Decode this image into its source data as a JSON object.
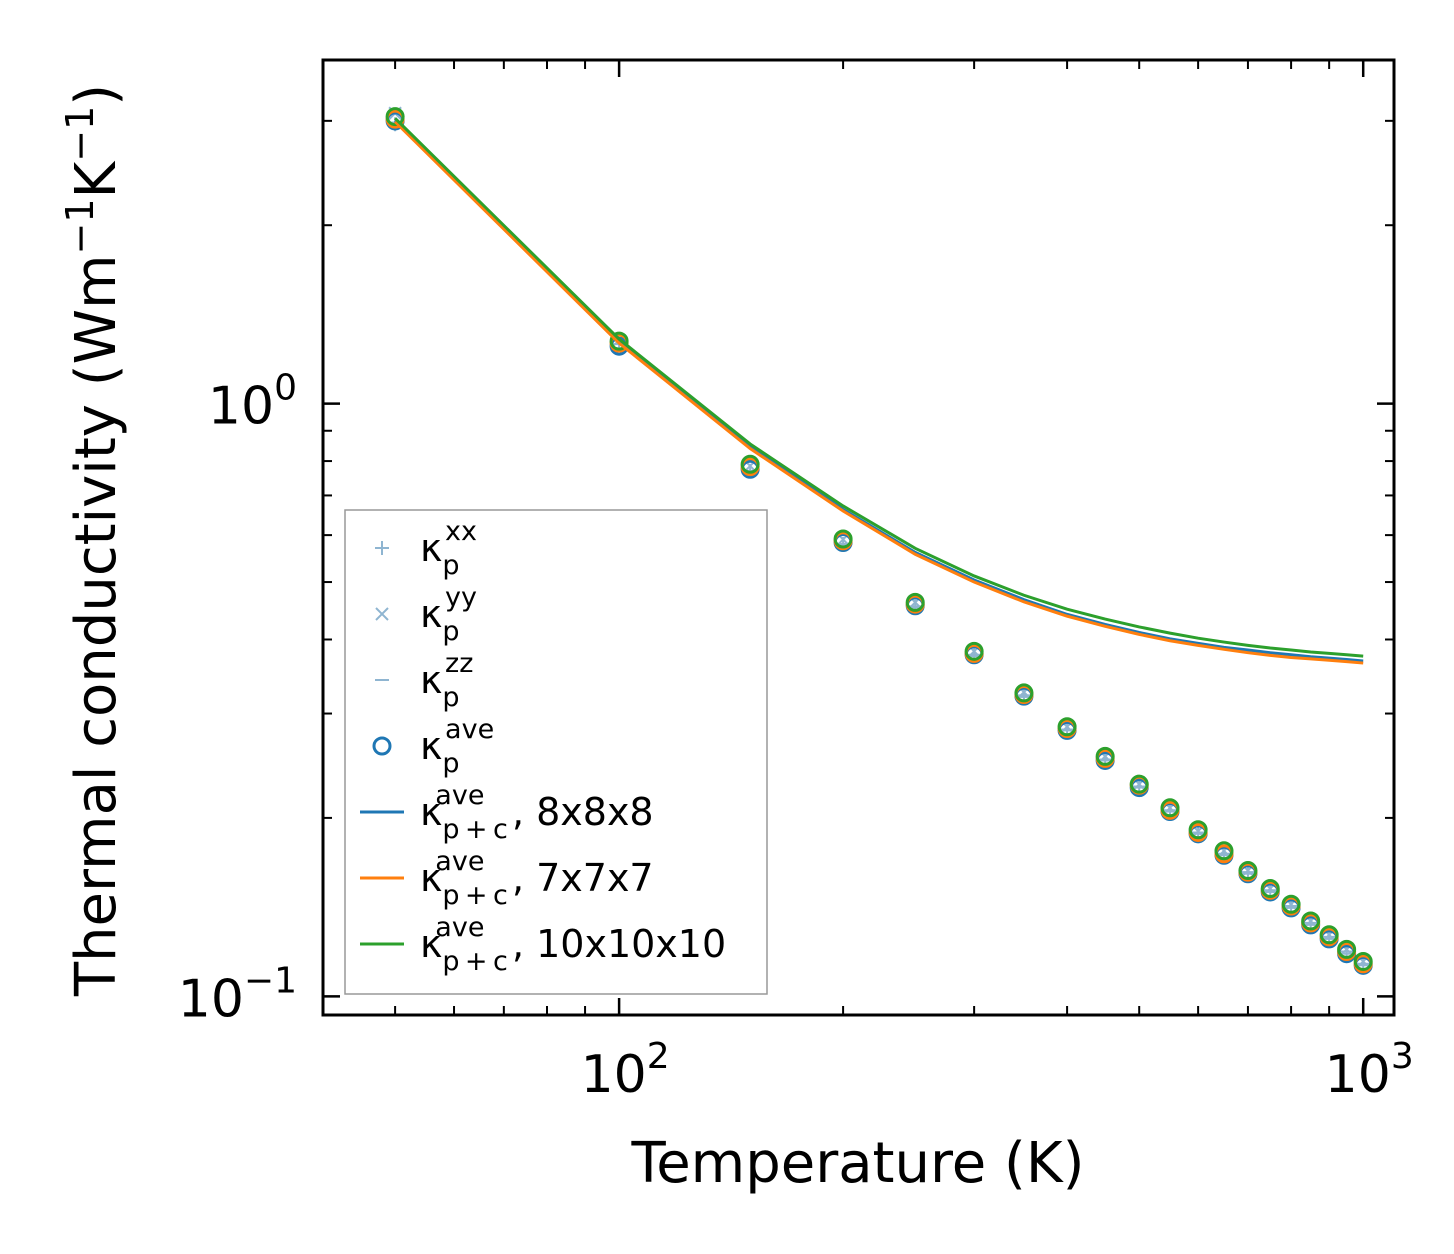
{
  "chart_data": {
    "type": "scatter",
    "xscale": "log",
    "yscale": "log",
    "xlabel": "Temperature (K)",
    "ylabel": "Thermal conductivity (Wm",
    "ylabel_unit_tail": "K",
    "ylabel_close": ")",
    "ylabel_exp": "−1",
    "xlim": [
      40,
      1100
    ],
    "ylim": [
      0.093,
      3.8
    ],
    "x_ticks": [
      {
        "value": 100,
        "base": "10",
        "exp": "2"
      },
      {
        "value": 1000,
        "base": "10",
        "exp": "3"
      }
    ],
    "y_ticks": [
      {
        "value": 1,
        "base": "10",
        "exp": "0"
      },
      {
        "value": 0.1,
        "base": "10",
        "exp": "−1"
      }
    ],
    "temperatures": [
      50,
      100,
      150,
      200,
      250,
      300,
      350,
      400,
      450,
      500,
      550,
      600,
      650,
      700,
      750,
      800,
      850,
      900,
      950,
      1000
    ],
    "series": [
      {
        "name": "kappa_p_xx",
        "label": "κ",
        "sub": "p",
        "sup": "xx",
        "marker": "plus",
        "color": "#8fb5d1",
        "values": [
          2.96,
          1.26,
          0.77,
          0.58,
          0.455,
          0.377,
          0.322,
          0.282,
          0.251,
          0.226,
          0.206,
          0.189,
          0.174,
          0.162,
          0.151,
          0.142,
          0.133,
          0.126,
          0.119,
          0.1135
        ]
      },
      {
        "name": "kappa_p_yy",
        "label": "κ",
        "sub": "p",
        "sup": "yy",
        "marker": "x",
        "color": "#8fb5d1",
        "values": [
          3.09,
          1.28,
          0.785,
          0.59,
          0.462,
          0.382,
          0.326,
          0.285,
          0.254,
          0.228,
          0.208,
          0.19,
          0.176,
          0.163,
          0.152,
          0.143,
          0.134,
          0.127,
          0.12,
          0.1145
        ]
      },
      {
        "name": "kappa_p_zz",
        "label": "κ",
        "sub": "p",
        "sup": "zz",
        "marker": "dash",
        "color": "#8fb5d1",
        "values": [
          2.98,
          1.24,
          0.77,
          0.578,
          0.453,
          0.375,
          0.32,
          0.281,
          0.25,
          0.225,
          0.205,
          0.188,
          0.173,
          0.161,
          0.15,
          0.141,
          0.132,
          0.125,
          0.118,
          0.1128
        ]
      },
      {
        "name": "kappa_p_ave_8",
        "label": "κ",
        "sub": "p",
        "sup": "ave",
        "marker": "circle",
        "color": "#1f77b4",
        "values": [
          3.0,
          1.25,
          0.775,
          0.583,
          0.456,
          0.377,
          0.321,
          0.281,
          0.25,
          0.225,
          0.205,
          0.188,
          0.173,
          0.161,
          0.15,
          0.141,
          0.132,
          0.125,
          0.118,
          0.1128
        ]
      },
      {
        "name": "kappa_p_ave_7",
        "legend": false,
        "marker": "circle",
        "color": "#ff7f0e",
        "values": [
          3.02,
          1.265,
          0.783,
          0.587,
          0.459,
          0.379,
          0.323,
          0.283,
          0.252,
          0.227,
          0.206,
          0.189,
          0.174,
          0.162,
          0.151,
          0.142,
          0.133,
          0.126,
          0.119,
          0.1135
        ]
      },
      {
        "name": "kappa_p_ave_10",
        "legend": false,
        "marker": "circle",
        "color": "#2ca02c",
        "values": [
          3.05,
          1.275,
          0.79,
          0.591,
          0.462,
          0.382,
          0.325,
          0.285,
          0.254,
          0.228,
          0.208,
          0.191,
          0.176,
          0.163,
          0.152,
          0.143,
          0.134,
          0.127,
          0.12,
          0.1145
        ]
      },
      {
        "name": "kappa_pc_ave_8x8x8",
        "label": "κ",
        "sub": "p + c",
        "sup": "ave",
        "suffix": ", 8x8x8",
        "marker": "line",
        "color": "#1f77b4",
        "values": [
          3.0,
          1.27,
          0.845,
          0.663,
          0.561,
          0.504,
          0.467,
          0.441,
          0.424,
          0.411,
          0.401,
          0.394,
          0.388,
          0.384,
          0.38,
          0.377,
          0.374,
          0.372,
          0.37,
          0.368
        ]
      },
      {
        "name": "kappa_pc_ave_7x7x7",
        "label": "κ",
        "sub": "p + c",
        "sup": "ave",
        "suffix": ", 7x7x7",
        "marker": "line",
        "color": "#ff7f0e",
        "values": [
          2.99,
          1.265,
          0.84,
          0.659,
          0.557,
          0.5,
          0.463,
          0.438,
          0.421,
          0.408,
          0.398,
          0.391,
          0.385,
          0.38,
          0.376,
          0.373,
          0.371,
          0.369,
          0.367,
          0.365
        ]
      },
      {
        "name": "kappa_pc_ave_10x10x10",
        "label": "κ",
        "sub": "p + c",
        "sup": "ave",
        "suffix": ", 10x10x10",
        "marker": "line",
        "color": "#2ca02c",
        "values": [
          3.03,
          1.285,
          0.855,
          0.672,
          0.57,
          0.512,
          0.475,
          0.45,
          0.433,
          0.42,
          0.41,
          0.402,
          0.396,
          0.391,
          0.387,
          0.384,
          0.381,
          0.379,
          0.377,
          0.375
        ]
      }
    ],
    "legend_location": "lower-left"
  }
}
